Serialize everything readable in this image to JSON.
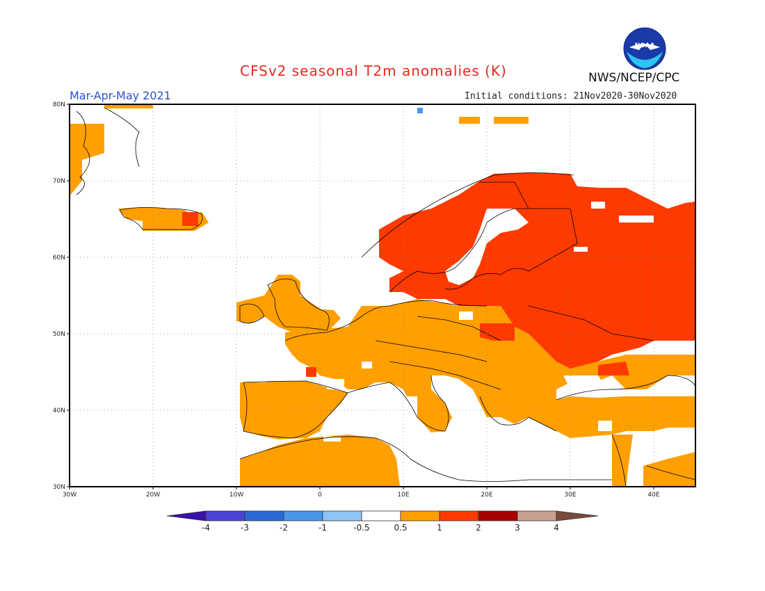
{
  "header": {
    "title": "CFSv2 seasonal T2m anomalies (K)",
    "period": "Mar-Apr-May 2021",
    "initial_conditions": "Initial conditions: 21Nov2020-30Nov2020",
    "agency": "NWS/NCEP/CPC",
    "logo_text": "NOAA"
  },
  "map": {
    "region": "Europe",
    "lon_range": [
      -30,
      45
    ],
    "lat_range": [
      30,
      80
    ],
    "lat_ticks": [
      "80N",
      "70N",
      "60N",
      "50N",
      "40N",
      "30N"
    ],
    "lon_ticks": [
      "30W",
      "20W",
      "10W",
      "0",
      "10E",
      "20E",
      "30E",
      "40E"
    ],
    "grid": "dotted"
  },
  "colorbar": {
    "labels": [
      "-4",
      "-3",
      "-2",
      "-1",
      "-0.5",
      "0.5",
      "1",
      "2",
      "3",
      "4"
    ],
    "colors": [
      "#3a10b0",
      "#4a44d4",
      "#2a6ad8",
      "#4a96ec",
      "#8ec4f4",
      "#ffffff",
      "#ff9f00",
      "#ff3a00",
      "#a80000",
      "#c8a090",
      "#7a4a3a"
    ]
  },
  "colors": {
    "anom_0_5_to_1": "#ff9f00",
    "anom_1_to_2": "#ff3a00",
    "anom_2_to_3": "#a80000",
    "title": "#e8281e",
    "period": "#2a4fd6"
  }
}
